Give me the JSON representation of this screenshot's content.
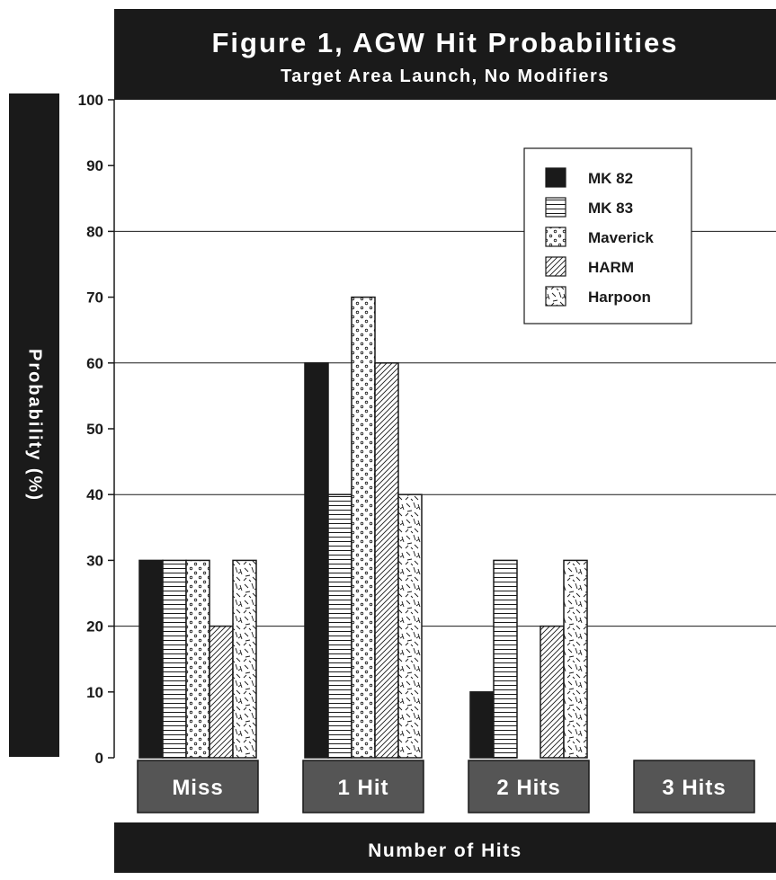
{
  "chart_data": {
    "type": "bar",
    "title": "Figure 1,  AGW Hit Probabilities",
    "subtitle": "Target Area Launch, No Modifiers",
    "xlabel": "Number of Hits",
    "ylabel": "Probability (%)",
    "categories": [
      "Miss",
      "1 Hit",
      "2 Hits",
      "3 Hits"
    ],
    "series": [
      {
        "name": "MK 82",
        "values": [
          30,
          60,
          10,
          0
        ],
        "pattern": "solid"
      },
      {
        "name": "MK 83",
        "values": [
          30,
          40,
          30,
          0
        ],
        "pattern": "horizontal-lines"
      },
      {
        "name": "Maverick",
        "values": [
          30,
          70,
          0,
          0
        ],
        "pattern": "dots"
      },
      {
        "name": "HARM",
        "values": [
          20,
          60,
          20,
          0
        ],
        "pattern": "diagonal-hatch"
      },
      {
        "name": "Harpoon",
        "values": [
          30,
          40,
          30,
          0
        ],
        "pattern": "random-dashes"
      }
    ],
    "ylim": [
      0,
      100
    ],
    "yticks": [
      0,
      10,
      20,
      30,
      40,
      50,
      60,
      70,
      80,
      90,
      100
    ],
    "gridlines": [
      20,
      40,
      60,
      80
    ],
    "grid": true,
    "legend_position": "top-right"
  },
  "colors": {
    "bars": "#1a1a1a",
    "title_bar": "#1a1a1a",
    "category_box": "#555555",
    "title_text": "#ffffff"
  }
}
